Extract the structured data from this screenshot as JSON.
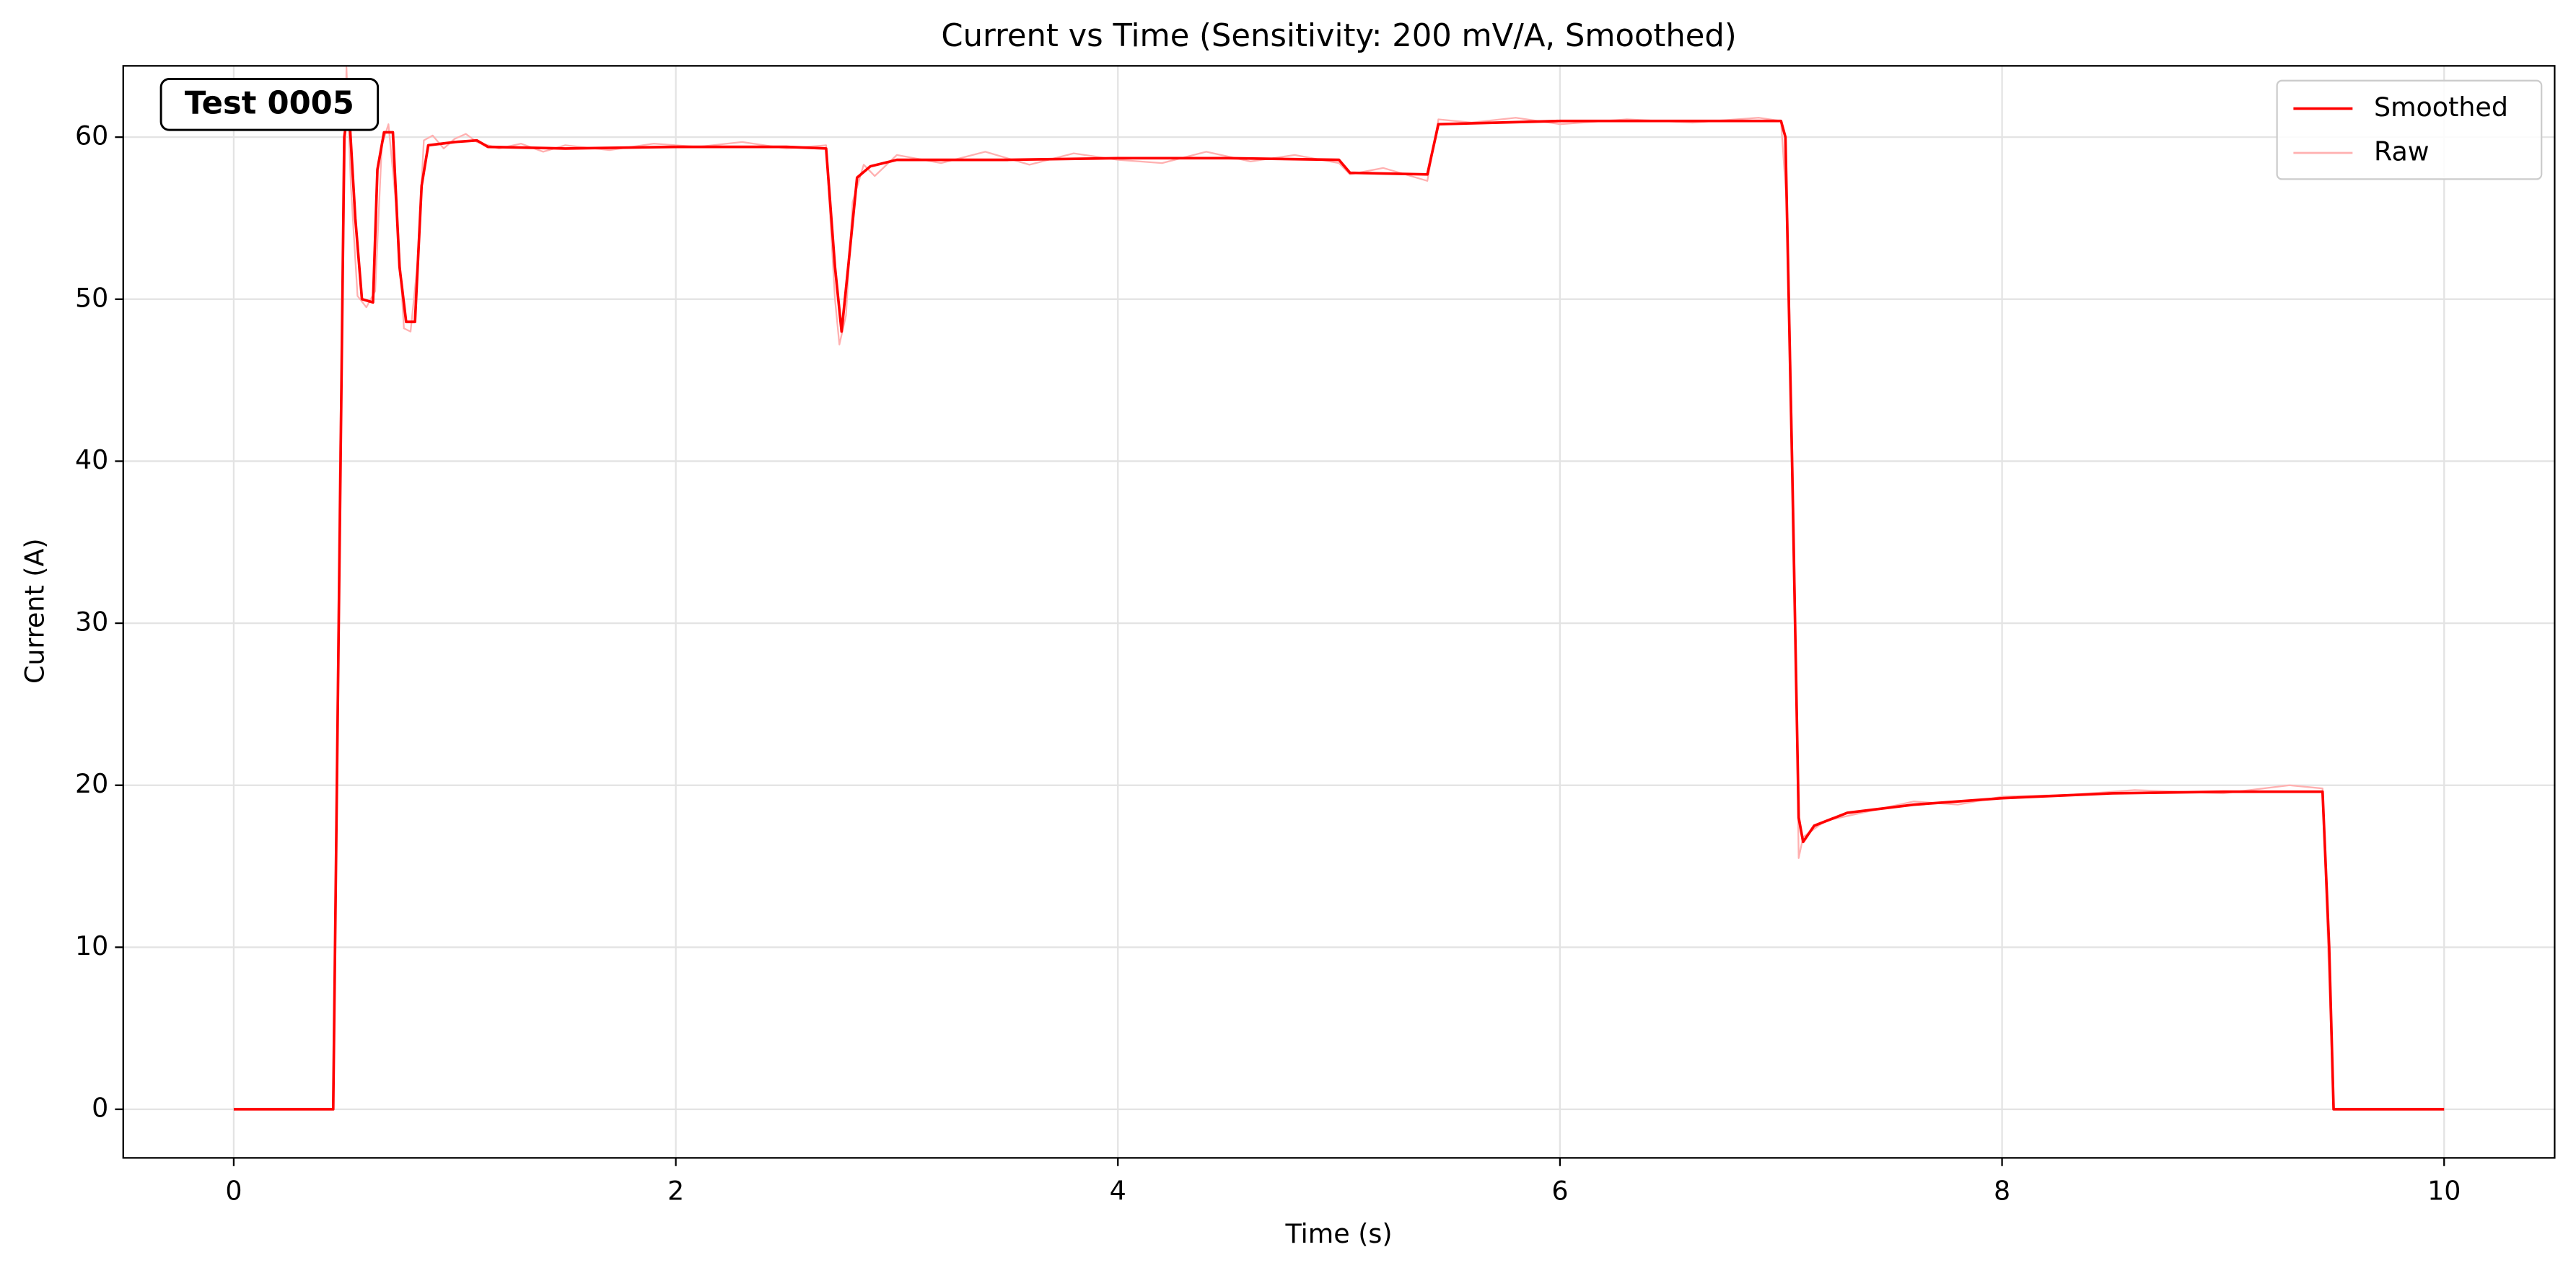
{
  "chart_data": {
    "type": "line",
    "title": "Current vs Time (Sensitivity: 200 mV/A, Smoothed)",
    "xlabel": "Time (s)",
    "ylabel": "Current (A)",
    "annotation": "Test 0005",
    "xlim": [
      -0.5,
      10.5
    ],
    "ylim": [
      -3.0,
      64.4
    ],
    "xticks": [
      0,
      2,
      4,
      6,
      8,
      10
    ],
    "yticks": [
      0,
      10,
      20,
      30,
      40,
      50,
      60
    ],
    "grid": true,
    "legend": "upper right",
    "series": [
      {
        "name": "Smoothed",
        "color": "#ff0000",
        "x": [
          0,
          0.45,
          0.5,
          0.52,
          0.55,
          0.58,
          0.63,
          0.65,
          0.68,
          0.72,
          0.75,
          0.78,
          0.82,
          0.85,
          0.88,
          1.0,
          1.1,
          1.15,
          1.5,
          2.0,
          2.5,
          2.68,
          2.72,
          2.75,
          2.78,
          2.82,
          2.88,
          3.0,
          3.5,
          4.0,
          4.5,
          5.0,
          5.05,
          5.4,
          5.45,
          6.0,
          6.5,
          7.0,
          7.02,
          7.05,
          7.08,
          7.1,
          7.15,
          7.3,
          7.6,
          8.0,
          8.5,
          9.0,
          9.45,
          9.48,
          9.5,
          10.0
        ],
        "values": [
          0,
          0,
          60,
          62,
          55,
          50,
          49.8,
          58,
          60.3,
          60.3,
          52,
          48.6,
          48.6,
          57,
          59.5,
          59.7,
          59.8,
          59.4,
          59.3,
          59.4,
          59.4,
          59.3,
          52,
          48,
          52,
          57.5,
          58.2,
          58.6,
          58.6,
          58.7,
          58.7,
          58.6,
          57.8,
          57.7,
          60.8,
          61.0,
          61.0,
          61.0,
          60,
          40,
          18,
          16.5,
          17.5,
          18.3,
          18.8,
          19.2,
          19.5,
          19.6,
          19.6,
          10,
          0,
          0
        ]
      },
      {
        "name": "Raw",
        "color": "#ffb0b0",
        "x": [
          0,
          0.45,
          0.48,
          0.51,
          0.53,
          0.56,
          0.6,
          0.64,
          0.67,
          0.7,
          0.74,
          0.77,
          0.8,
          0.83,
          0.86,
          0.9,
          0.95,
          1.0,
          1.05,
          1.1,
          1.2,
          1.3,
          1.4,
          1.5,
          1.7,
          1.9,
          2.1,
          2.3,
          2.5,
          2.68,
          2.72,
          2.74,
          2.77,
          2.8,
          2.85,
          2.9,
          3.0,
          3.2,
          3.4,
          3.6,
          3.8,
          4.0,
          4.2,
          4.4,
          4.6,
          4.8,
          5.0,
          5.05,
          5.2,
          5.4,
          5.45,
          5.6,
          5.8,
          6.0,
          6.3,
          6.6,
          6.9,
          7.0,
          7.03,
          7.06,
          7.08,
          7.1,
          7.2,
          7.4,
          7.6,
          7.8,
          8.0,
          8.3,
          8.6,
          9.0,
          9.3,
          9.45,
          9.48,
          9.5,
          10.0
        ],
        "values": [
          0,
          0,
          40,
          64.3,
          57,
          50.2,
          49.5,
          50.5,
          59.5,
          60.8,
          55,
          48.2,
          48.0,
          52,
          59.8,
          60.1,
          59.3,
          59.9,
          60.2,
          59.7,
          59.3,
          59.6,
          59.1,
          59.5,
          59.2,
          59.6,
          59.4,
          59.7,
          59.3,
          59.5,
          50,
          47.2,
          49,
          56,
          58.3,
          57.6,
          58.9,
          58.4,
          59.1,
          58.3,
          59.0,
          58.6,
          58.4,
          59.1,
          58.5,
          58.9,
          58.4,
          57.7,
          58.1,
          57.3,
          61.1,
          60.9,
          61.2,
          60.8,
          61.1,
          60.9,
          61.2,
          61.0,
          55,
          35,
          15.5,
          16.8,
          17.8,
          18.4,
          19.0,
          18.8,
          19.3,
          19.4,
          19.7,
          19.5,
          20.0,
          19.8,
          8,
          0,
          0
        ]
      }
    ]
  }
}
